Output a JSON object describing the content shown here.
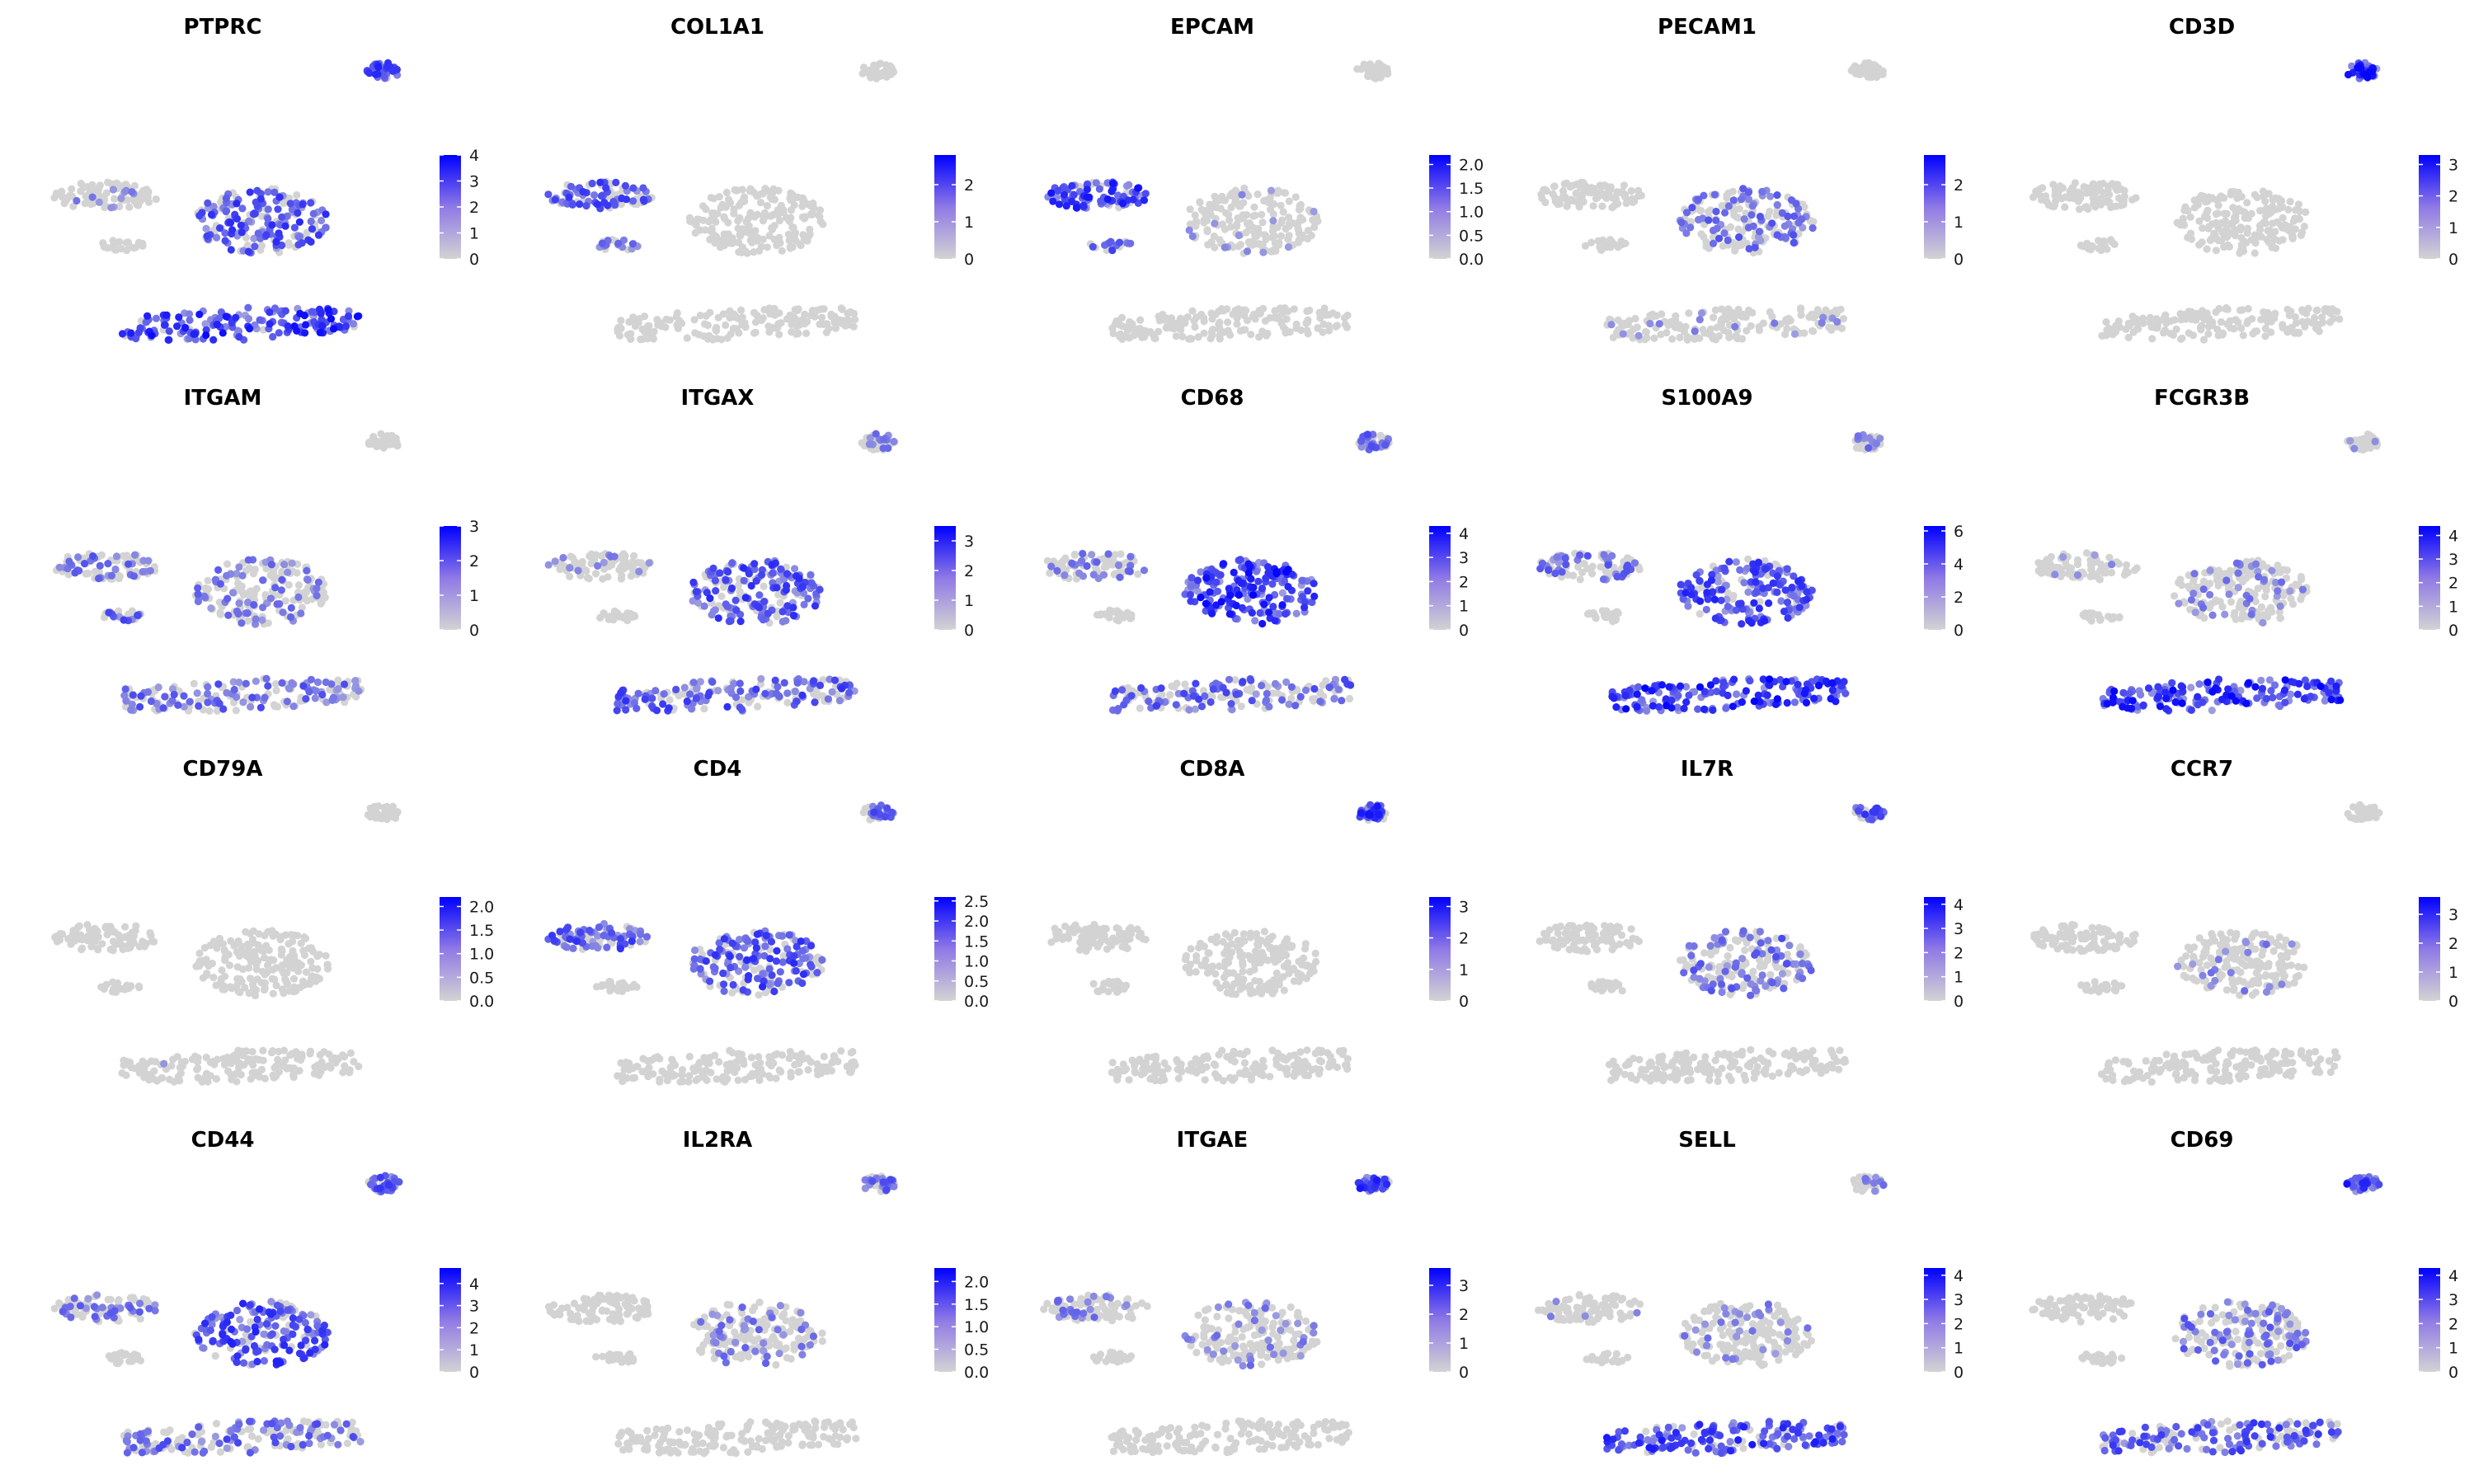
{
  "colors": {
    "low": "#d3d3d3",
    "high": "#0000ff",
    "mid": "#8f79e6"
  },
  "chart_data": [
    {
      "type": "scatter",
      "title": "PTPRC",
      "legend": {
        "ticks": [
          "4",
          "3",
          "2",
          "1",
          "0"
        ],
        "max": 4,
        "tick_values": [
          4,
          3,
          2,
          1,
          0
        ]
      },
      "expression": {
        "island": 0.1,
        "top": 0.6,
        "center": 0.55,
        "bottom": 0.75
      }
    },
    {
      "type": "scatter",
      "title": "COL1A1",
      "legend": {
        "ticks": [
          "2",
          "1",
          "0"
        ],
        "max": 2.8,
        "tick_values": [
          2,
          1,
          0
        ]
      },
      "expression": {
        "island": 0.5,
        "top": 0,
        "center": 0,
        "bottom": 0,
        "small": 0.3
      }
    },
    {
      "type": "scatter",
      "title": "EPCAM",
      "legend": {
        "ticks": [
          "2.0",
          "1.5",
          "1.0",
          "0.5",
          "0.0"
        ],
        "max": 2.2,
        "tick_values": [
          2,
          1.5,
          1,
          0.5,
          0
        ]
      },
      "expression": {
        "island": 0.7,
        "top": 0,
        "center": 0.05,
        "bottom": 0,
        "small": 0.4
      }
    },
    {
      "type": "scatter",
      "title": "PECAM1",
      "legend": {
        "ticks": [
          "2",
          "1",
          "0"
        ],
        "max": 2.8,
        "tick_values": [
          2,
          1,
          0
        ]
      },
      "expression": {
        "island": 0,
        "top": 0,
        "center": 0.3,
        "bottom": 0.05
      }
    },
    {
      "type": "scatter",
      "title": "CD3D",
      "legend": {
        "ticks": [
          "3",
          "2",
          "1",
          "0"
        ],
        "max": 3.3,
        "tick_values": [
          3,
          2,
          1,
          0
        ]
      },
      "expression": {
        "island": 0,
        "top": 0.8,
        "center": 0,
        "bottom": 0
      }
    },
    {
      "type": "scatter",
      "title": "ITGAM",
      "legend": {
        "ticks": [
          "3",
          "2",
          "1",
          "0"
        ],
        "max": 3,
        "tick_values": [
          3,
          2,
          1,
          0
        ]
      },
      "expression": {
        "island": 0.3,
        "top": 0,
        "center": 0.25,
        "bottom": 0.35,
        "small": 0.4
      }
    },
    {
      "type": "scatter",
      "title": "ITGAX",
      "legend": {
        "ticks": [
          "3",
          "2",
          "1",
          "0"
        ],
        "max": 3.5,
        "tick_values": [
          3,
          2,
          1,
          0
        ]
      },
      "expression": {
        "island": 0.1,
        "top": 0.2,
        "center": 0.55,
        "bottom": 0.5
      }
    },
    {
      "type": "scatter",
      "title": "CD68",
      "legend": {
        "ticks": [
          "4",
          "3",
          "2",
          "1",
          "0"
        ],
        "max": 4.3,
        "tick_values": [
          4,
          3,
          2,
          1,
          0
        ]
      },
      "expression": {
        "island": 0.2,
        "top": 0.4,
        "center": 0.85,
        "bottom": 0.4
      }
    },
    {
      "type": "scatter",
      "title": "S100A9",
      "legend": {
        "ticks": [
          "6",
          "4",
          "2",
          "0"
        ],
        "max": 6.3,
        "tick_values": [
          6,
          4,
          2,
          0
        ]
      },
      "expression": {
        "island": 0.3,
        "top": 0.2,
        "center": 0.6,
        "bottom": 0.9
      }
    },
    {
      "type": "scatter",
      "title": "FCGR3B",
      "legend": {
        "ticks": [
          "4",
          "3",
          "2",
          "1",
          "0"
        ],
        "max": 4.4,
        "tick_values": [
          4,
          3,
          2,
          1,
          0
        ]
      },
      "expression": {
        "island": 0.05,
        "top": 0.1,
        "center": 0.15,
        "bottom": 0.85
      }
    },
    {
      "type": "scatter",
      "title": "CD79A",
      "legend": {
        "ticks": [
          "2.0",
          "1.5",
          "1.0",
          "0.5",
          "0.0"
        ],
        "max": 2.2,
        "tick_values": [
          2,
          1.5,
          1,
          0.5,
          0
        ]
      },
      "expression": {
        "island": 0,
        "top": 0,
        "center": 0,
        "bottom": 0.02
      }
    },
    {
      "type": "scatter",
      "title": "CD4",
      "legend": {
        "ticks": [
          "2.5",
          "2.0",
          "1.5",
          "1.0",
          "0.5",
          "0.0"
        ],
        "max": 2.6,
        "tick_values": [
          2.5,
          2,
          1.5,
          1,
          0.5,
          0
        ]
      },
      "expression": {
        "island": 0.5,
        "top": 0.4,
        "center": 0.55,
        "bottom": 0
      }
    },
    {
      "type": "scatter",
      "title": "CD8A",
      "legend": {
        "ticks": [
          "3",
          "2",
          "1",
          "0"
        ],
        "max": 3.3,
        "tick_values": [
          3,
          2,
          1,
          0
        ]
      },
      "expression": {
        "island": 0,
        "top": 0.7,
        "center": 0,
        "bottom": 0
      }
    },
    {
      "type": "scatter",
      "title": "IL7R",
      "legend": {
        "ticks": [
          "4",
          "3",
          "2",
          "1",
          "0"
        ],
        "max": 4.3,
        "tick_values": [
          4,
          3,
          2,
          1,
          0
        ]
      },
      "expression": {
        "island": 0,
        "top": 0.5,
        "center": 0.35,
        "bottom": 0
      }
    },
    {
      "type": "scatter",
      "title": "CCR7",
      "legend": {
        "ticks": [
          "3",
          "2",
          "1",
          "0"
        ],
        "max": 3.6,
        "tick_values": [
          3,
          2,
          1,
          0
        ]
      },
      "expression": {
        "island": 0,
        "top": 0,
        "center": 0.12,
        "bottom": 0
      }
    },
    {
      "type": "scatter",
      "title": "CD44",
      "legend": {
        "ticks": [
          "4",
          "3",
          "2",
          "1",
          "0"
        ],
        "max": 4.7,
        "tick_values": [
          4,
          3,
          2,
          1,
          0
        ]
      },
      "expression": {
        "island": 0.25,
        "top": 0.5,
        "center": 0.6,
        "bottom": 0.4
      }
    },
    {
      "type": "scatter",
      "title": "IL2RA",
      "legend": {
        "ticks": [
          "2.0",
          "1.5",
          "1.0",
          "0.5",
          "0.0"
        ],
        "max": 2.3,
        "tick_values": [
          2,
          1.5,
          1,
          0.5,
          0
        ]
      },
      "expression": {
        "island": 0,
        "top": 0.4,
        "center": 0.2,
        "bottom": 0
      }
    },
    {
      "type": "scatter",
      "title": "ITGAE",
      "legend": {
        "ticks": [
          "3",
          "2",
          "1",
          "0"
        ],
        "max": 3.6,
        "tick_values": [
          3,
          2,
          1,
          0
        ]
      },
      "expression": {
        "island": 0.2,
        "top": 0.7,
        "center": 0.15,
        "bottom": 0
      }
    },
    {
      "type": "scatter",
      "title": "SELL",
      "legend": {
        "ticks": [
          "4",
          "3",
          "2",
          "1",
          "0"
        ],
        "max": 4.3,
        "tick_values": [
          4,
          3,
          2,
          1,
          0
        ]
      },
      "expression": {
        "island": 0.05,
        "top": 0.2,
        "center": 0.15,
        "bottom": 0.65
      }
    },
    {
      "type": "scatter",
      "title": "CD69",
      "legend": {
        "ticks": [
          "4",
          "3",
          "2",
          "1",
          "0"
        ],
        "max": 4.3,
        "tick_values": [
          4,
          3,
          2,
          1,
          0
        ]
      },
      "expression": {
        "island": 0,
        "top": 0.7,
        "center": 0.3,
        "bottom": 0.5
      }
    }
  ]
}
